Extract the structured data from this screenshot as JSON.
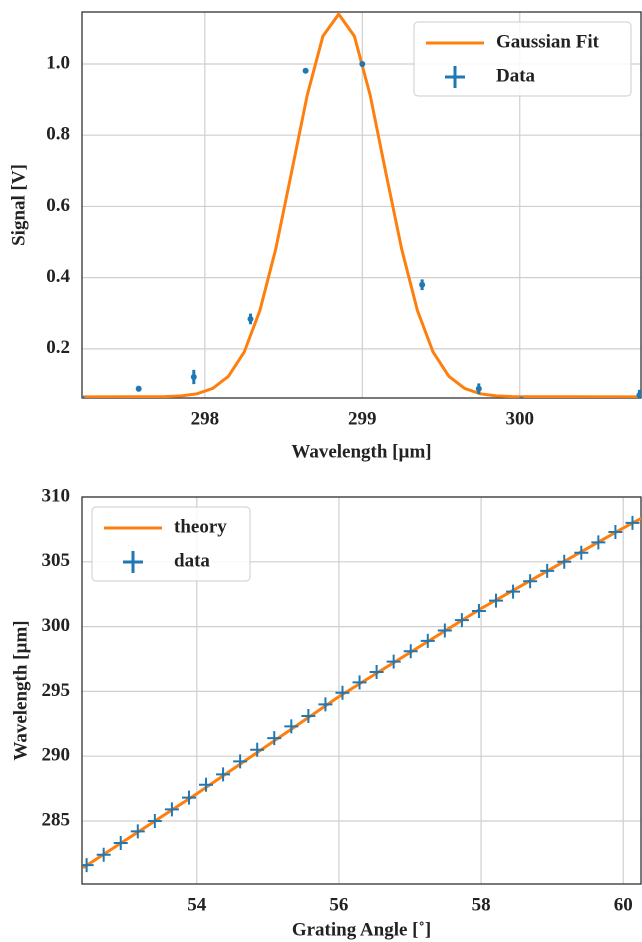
{
  "chart_data": [
    {
      "type": "line",
      "xlabel": "Wavelength [µm]",
      "ylabel": "Signal [V]",
      "xlim": [
        297.22,
        300.77
      ],
      "ylim": [
        0.062,
        1.146
      ],
      "xticks": [
        298,
        299,
        300
      ],
      "yticks": [
        0.2,
        0.4,
        0.6,
        0.8,
        {
          "value": 1.0,
          "label": "1.0"
        }
      ],
      "grid": true,
      "legend": "upper right",
      "series": [
        {
          "name": "Gaussian Fit",
          "type": "line",
          "color": "#ff7f0e",
          "x": [
            297.22,
            297.75,
            297.85,
            297.95,
            298.05,
            298.15,
            298.25,
            298.35,
            298.45,
            298.55,
            298.65,
            298.75,
            298.85,
            298.95,
            299.05,
            299.15,
            299.25,
            299.35,
            299.45,
            299.55,
            299.65,
            299.75,
            299.85,
            299.95,
            300.77
          ],
          "values": [
            0.065,
            0.0658,
            0.0678,
            0.0737,
            0.089,
            0.123,
            0.191,
            0.308,
            0.48,
            0.694,
            0.912,
            1.078,
            1.14,
            1.078,
            0.912,
            0.694,
            0.48,
            0.308,
            0.191,
            0.123,
            0.089,
            0.0737,
            0.0678,
            0.0658,
            0.065
          ]
        },
        {
          "name": "Data",
          "type": "errorbar",
          "color": "#1f77b4",
          "x": [
            297.22,
            297.58,
            297.93,
            298.29,
            298.64,
            299.0,
            299.38,
            299.74,
            300.01,
            300.37,
            300.76
          ],
          "values": [
            0.06,
            0.088,
            0.121,
            0.284,
            0.981,
            1.0,
            0.38,
            0.088,
            0.057,
            0.054,
            0.07
          ],
          "errors": [
            0.005,
            0.008,
            0.02,
            0.015,
            0.006,
            0.006,
            0.015,
            0.015,
            0.008,
            0.005,
            0.015
          ]
        }
      ]
    },
    {
      "type": "line",
      "xlabel": "Grating Angle [˚]",
      "ylabel": "Wavelength [µm]",
      "xlim": [
        52.385,
        60.25
      ],
      "ylim": [
        280.14,
        310
      ],
      "xticks": [
        54,
        56,
        58,
        60
      ],
      "yticks": [
        285,
        290,
        295,
        300,
        305,
        310
      ],
      "grid": true,
      "legend": "upper left",
      "series": [
        {
          "name": "theory",
          "type": "line",
          "color": "#ff7f0e",
          "x": [
            52.4,
            54,
            56,
            58,
            60,
            60.4
          ],
          "values": [
            281.4,
            287.1,
            294.6,
            301.4,
            307.6,
            308.8
          ]
        },
        {
          "name": "data",
          "type": "scatter",
          "color": "#1f77b4",
          "x": [
            52.45,
            52.69,
            52.93,
            53.17,
            53.41,
            53.65,
            53.89,
            54.13,
            54.37,
            54.61,
            54.85,
            55.09,
            55.33,
            55.57,
            55.81,
            56.05,
            56.29,
            56.53,
            56.77,
            57.01,
            57.25,
            57.49,
            57.73,
            57.97,
            58.21,
            58.45,
            58.69,
            58.93,
            59.17,
            59.41,
            59.65,
            59.89,
            60.13
          ],
          "values": [
            281.6,
            282.4,
            283.3,
            284.2,
            285.0,
            285.9,
            286.8,
            287.8,
            288.6,
            289.6,
            290.5,
            291.4,
            292.3,
            293.1,
            294.0,
            294.9,
            295.7,
            296.5,
            297.3,
            298.1,
            298.9,
            299.7,
            300.5,
            301.2,
            302.0,
            302.7,
            303.5,
            304.3,
            305.0,
            305.7,
            306.5,
            307.3,
            308.0
          ]
        }
      ]
    }
  ]
}
